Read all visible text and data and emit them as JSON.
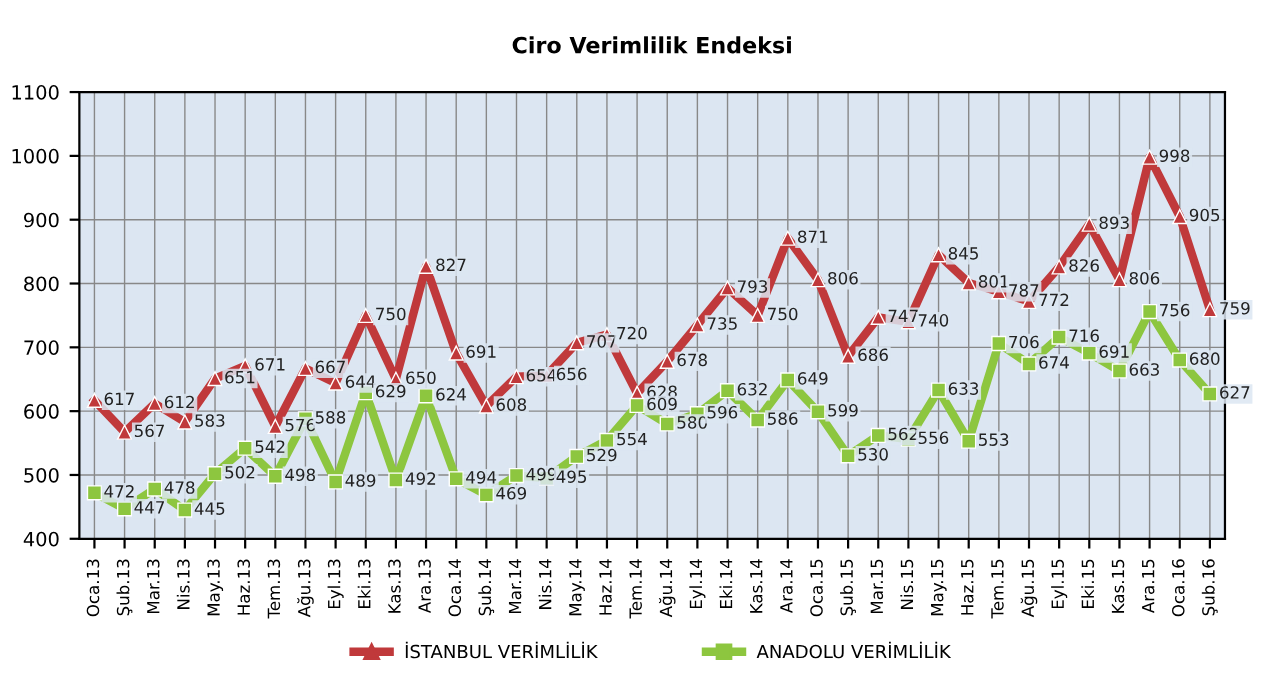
{
  "chart_data": {
    "type": "line",
    "title": "Ciro Verimlilik Endeksi",
    "categories": [
      "Oca.13",
      "Şub.13",
      "Mar.13",
      "Nis.13",
      "May.13",
      "Haz.13",
      "Tem.13",
      "Ağu.13",
      "Eyl.13",
      "Eki.13",
      "Kas.13",
      "Ara.13",
      "Oca.14",
      "Şub.14",
      "Mar.14",
      "Nis.14",
      "May.14",
      "Haz.14",
      "Tem.14",
      "Ağu.14",
      "Eyl.14",
      "Eki.14",
      "Kas.14",
      "Ara.14",
      "Oca.15",
      "Şub.15",
      "Mar.15",
      "Nis.15",
      "May.15",
      "Haz.15",
      "Tem.15",
      "Ağu.15",
      "Eyl.15",
      "Eki.15",
      "Kas.15",
      "Ara.15",
      "Oca.16",
      "Şub.16"
    ],
    "series": [
      {
        "name": "İSTANBUL VERİMLİLİK",
        "color": "#c0393b",
        "marker": "triangle",
        "values": [
          617,
          567,
          612,
          583,
          651,
          671,
          576,
          667,
          644,
          750,
          650,
          827,
          691,
          608,
          654,
          656,
          707,
          720,
          628,
          678,
          735,
          793,
          750,
          871,
          806,
          686,
          747,
          740,
          845,
          801,
          787,
          772,
          826,
          893,
          806,
          998,
          905,
          759
        ]
      },
      {
        "name": "ANADOLU VERİMLİLİK",
        "color": "#8dc63f",
        "marker": "square",
        "values": [
          472,
          447,
          478,
          445,
          502,
          542,
          498,
          588,
          489,
          629,
          492,
          624,
          494,
          469,
          499,
          495,
          529,
          554,
          609,
          580,
          596,
          632,
          586,
          649,
          599,
          530,
          562,
          556,
          633,
          553,
          706,
          674,
          716,
          691,
          663,
          756,
          680,
          627
        ]
      }
    ],
    "ylim": [
      400,
      1100
    ],
    "yticks": [
      400,
      500,
      600,
      700,
      800,
      900,
      1000,
      1100
    ],
    "grid": true,
    "legend": "bottom",
    "data_labels": true,
    "line_style": "solid"
  }
}
